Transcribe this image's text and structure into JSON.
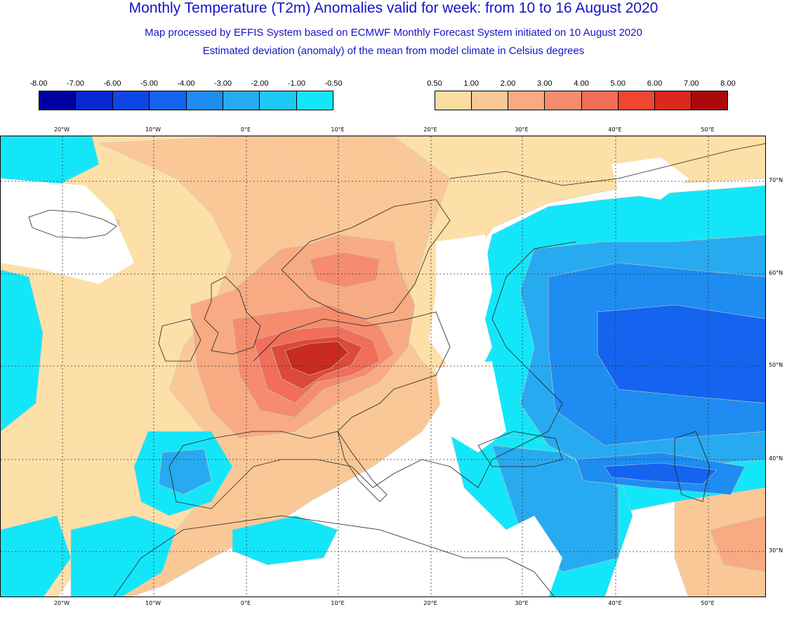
{
  "header": {
    "title": "Monthly Temperature (T2m) Anomalies valid for week: from 10 to 16 August 2020",
    "subtitle1": "Map processed by EFFIS System based on ECMWF Monthly Forecast System initiated on 10 August 2020",
    "subtitle2": "Estimated deviation (anomaly) of the mean from model climate in Celsius degrees"
  },
  "legend_negative": {
    "labels": [
      "-8.00",
      "-7.00",
      "-6.00",
      "-5.00",
      "-4.00",
      "-3.00",
      "-2.00",
      "-1.00",
      "-0.50"
    ],
    "colors": [
      "#0000a0",
      "#0a28d2",
      "#0f46e6",
      "#1464f0",
      "#1e8cf0",
      "#28aaf0",
      "#1ec8f5",
      "#14e6fa"
    ]
  },
  "legend_positive": {
    "labels": [
      "0.50",
      "1.00",
      "2.00",
      "3.00",
      "4.00",
      "5.00",
      "6.00",
      "7.00",
      "8.00"
    ],
    "colors": [
      "#fcdca0",
      "#fac896",
      "#f8aa82",
      "#f58c6e",
      "#f06e5a",
      "#f04632",
      "#dc281e",
      "#aa0a0a"
    ]
  },
  "map": {
    "lon_labels": [
      "20°W",
      "10°W",
      "0°E",
      "10°E",
      "20°E",
      "30°E",
      "40°E",
      "50°E"
    ],
    "lat_labels": [
      "70°N",
      "60°N",
      "50°N",
      "40°N",
      "30°N"
    ],
    "palette": {
      "land_base": "#fce0a8",
      "pos1": "#fac896",
      "pos2": "#f8aa82",
      "pos3": "#f58c6e",
      "pos4": "#f06e5a",
      "pos5": "#dc4a38",
      "pos6": "#c82a20",
      "neg1": "#14e6fa",
      "neg2": "#28aaf0",
      "neg3": "#1e8cf0",
      "neg4": "#1464f0",
      "neg5": "#0f46e6",
      "coast": "#222222",
      "grid": "#333333"
    }
  }
}
